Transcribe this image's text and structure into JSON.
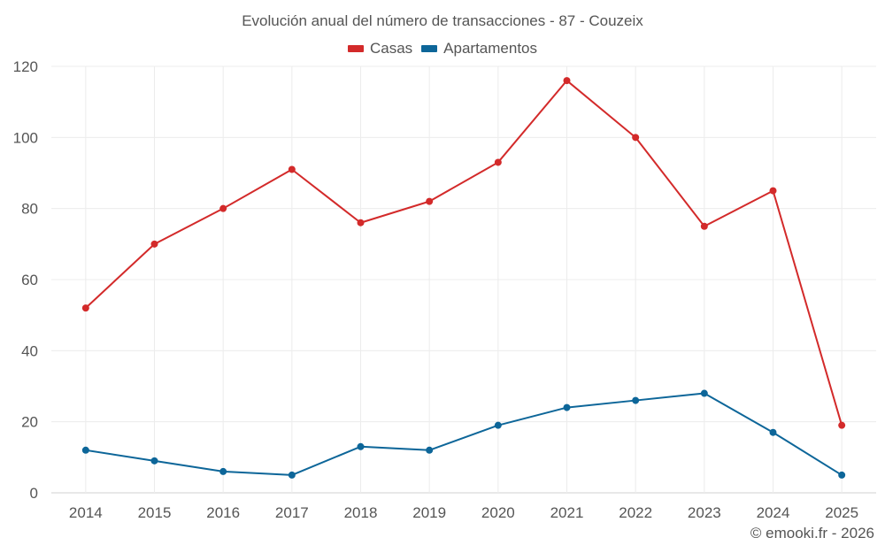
{
  "chart_data": {
    "type": "line",
    "title": "Evolución anual del número de transacciones - 87 - Couzeix",
    "xlabel": "",
    "ylabel": "",
    "categories": [
      "2014",
      "2015",
      "2016",
      "2017",
      "2018",
      "2019",
      "2020",
      "2021",
      "2022",
      "2023",
      "2024",
      "2025"
    ],
    "ylim": [
      0,
      120
    ],
    "yticks": [
      0,
      20,
      40,
      60,
      80,
      100,
      120
    ],
    "grid": true,
    "legend_position": "top-center",
    "series": [
      {
        "name": "Casas",
        "color": "#d32a2a",
        "values": [
          52,
          70,
          80,
          91,
          76,
          82,
          93,
          116,
          100,
          75,
          85,
          19
        ]
      },
      {
        "name": "Apartamentos",
        "color": "#0d6699",
        "values": [
          12,
          9,
          6,
          5,
          13,
          12,
          19,
          24,
          26,
          28,
          17,
          5
        ]
      }
    ]
  },
  "credit": "© emooki.fr - 2026"
}
